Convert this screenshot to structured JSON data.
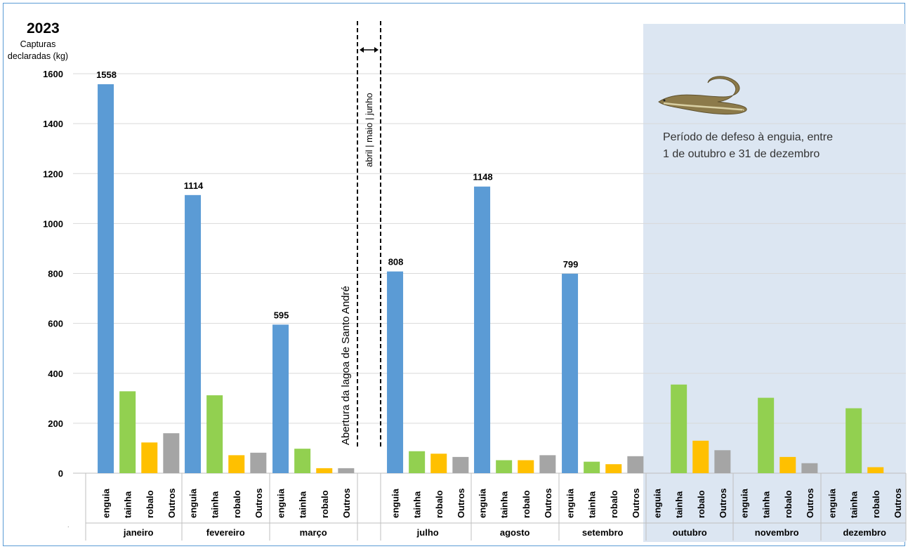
{
  "chart_data": {
    "type": "bar",
    "year_label": "2023",
    "ylabel": "Capturas declaradas (kg)",
    "ylabel_lines": [
      "Capturas",
      "declaradas (kg)"
    ],
    "ylim": [
      0,
      1600
    ],
    "yticks": [
      0,
      200,
      400,
      600,
      800,
      1000,
      1200,
      1400,
      1600
    ],
    "grid": true,
    "series_names": [
      "enguia",
      "tainha",
      "robalo",
      "Outros"
    ],
    "series_colors": [
      "#5b9bd5",
      "#92d050",
      "#ffc000",
      "#a5a5a5"
    ],
    "groups": [
      {
        "month": "janeiro",
        "values": [
          1558,
          328,
          123,
          160
        ],
        "labels": [
          "1558",
          null,
          null,
          null
        ]
      },
      {
        "month": "fevereiro",
        "values": [
          1114,
          312,
          72,
          82
        ],
        "labels": [
          "1114",
          null,
          null,
          null
        ]
      },
      {
        "month": "março",
        "values": [
          595,
          98,
          20,
          20
        ],
        "labels": [
          "595",
          null,
          null,
          null
        ]
      },
      {
        "month": "julho",
        "values": [
          808,
          88,
          78,
          65
        ],
        "labels": [
          "808",
          null,
          null,
          null
        ]
      },
      {
        "month": "agosto",
        "values": [
          1148,
          52,
          52,
          72
        ],
        "labels": [
          "1148",
          null,
          null,
          null
        ]
      },
      {
        "month": "setembro",
        "values": [
          799,
          46,
          36,
          68
        ],
        "labels": [
          "799",
          null,
          null,
          null
        ]
      },
      {
        "month": "outubro",
        "values": [
          0,
          355,
          130,
          92
        ],
        "labels": [
          null,
          null,
          null,
          null
        ]
      },
      {
        "month": "novembro",
        "values": [
          0,
          302,
          65,
          40
        ],
        "labels": [
          null,
          null,
          null,
          null
        ]
      },
      {
        "month": "dezembro",
        "values": [
          0,
          260,
          24,
          0
        ],
        "labels": [
          null,
          null,
          null,
          null
        ]
      }
    ],
    "annotations": {
      "gap_months": "abril | maio | junho",
      "opening": "Abertura da lagoa de Santo André",
      "closed_season_lines": [
        "Período de defeso à enguia, entre",
        "1 de outubro e 31 de dezembro"
      ]
    },
    "colors": {
      "grid": "#d9d9d9",
      "axis": "#bfbfbf",
      "shade": "#dce6f2",
      "frame": "#5b9bd5",
      "eel_body": "#8c7a4a",
      "eel_belly": "#d8cfa3"
    }
  }
}
